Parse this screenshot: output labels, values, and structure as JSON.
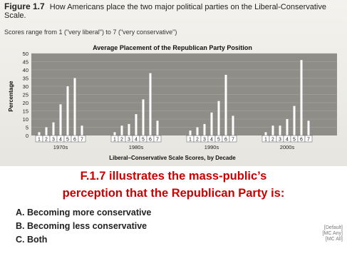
{
  "figure": {
    "label": "Figure 1.7",
    "caption": "How Americans place the two major political parties on the Liberal-Conservative Scale.",
    "scores_note": "Scores range from 1 (\"very liberal\") to 7 (\"very conservative\")"
  },
  "chart_data": {
    "type": "bar",
    "title": "Average Placement of the Republican Party Position",
    "ylabel": "Percentage",
    "xlabel": "Liberal–Conservative Scale Scores, by Decade",
    "ylim": [
      0,
      50
    ],
    "yticks": [
      0,
      5,
      10,
      15,
      20,
      25,
      30,
      35,
      40,
      45,
      50
    ],
    "grid": true,
    "scale_points": [
      "1",
      "2",
      "3",
      "4",
      "5",
      "6",
      "7"
    ],
    "groups": [
      {
        "decade": "1970s",
        "values": [
          2,
          5,
          8,
          19,
          30,
          35,
          6
        ]
      },
      {
        "decade": "1980s",
        "values": [
          2,
          6,
          7,
          13,
          22,
          38,
          9
        ]
      },
      {
        "decade": "1990s",
        "values": [
          3,
          5,
          7,
          14,
          21,
          37,
          12
        ]
      },
      {
        "decade": "2000s",
        "values": [
          2,
          6,
          6,
          10,
          18,
          46,
          9
        ]
      }
    ]
  },
  "question": {
    "line1": "F.1.7 illustrates the mass-public’s",
    "line2": "perception that the Republican Party is:"
  },
  "options": [
    {
      "letter": "A.",
      "text": "Becoming more conservative"
    },
    {
      "letter": "B.",
      "text": "Becoming less conservative"
    },
    {
      "letter": "C.",
      "text": "Both"
    }
  ],
  "tags": [
    "[Default]",
    "[MC Any]",
    "[MC All]"
  ],
  "colors": {
    "question": "#cc0000",
    "plot_bg": "#8f8d88",
    "bar": "#ffffff"
  }
}
